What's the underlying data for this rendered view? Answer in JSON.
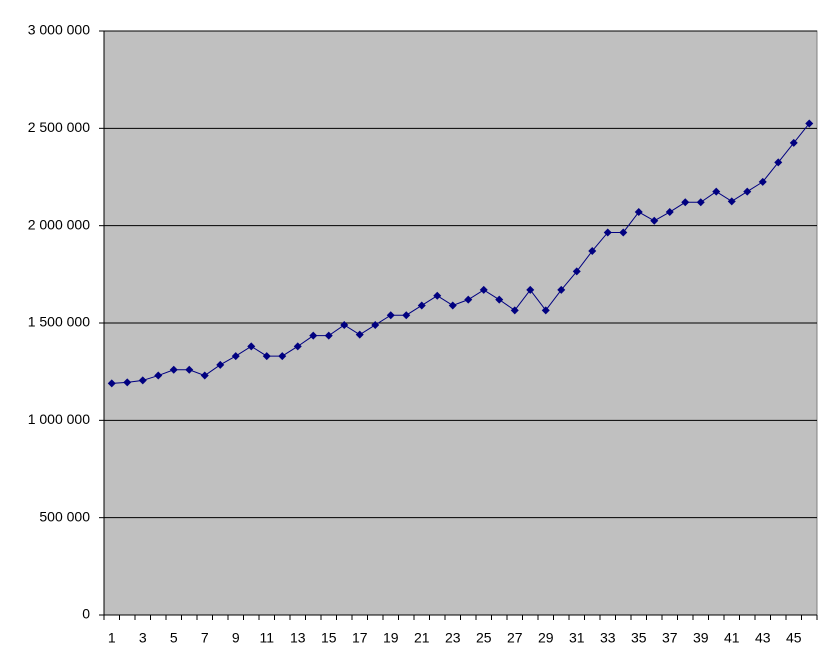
{
  "chart_data": {
    "type": "line",
    "categories": [
      1,
      null,
      3,
      null,
      5,
      null,
      7,
      null,
      9,
      null,
      11,
      null,
      13,
      null,
      15,
      null,
      17,
      null,
      19,
      null,
      21,
      null,
      23,
      null,
      25,
      null,
      27,
      null,
      29,
      null,
      31,
      null,
      33,
      null,
      35,
      null,
      37,
      null,
      39,
      null,
      41,
      null,
      43,
      null,
      45,
      null
    ],
    "values": [
      1190000,
      1195000,
      1205000,
      1230000,
      1260000,
      1260000,
      1230000,
      1285000,
      1330000,
      1380000,
      1330000,
      1330000,
      1380000,
      1435000,
      1435000,
      1490000,
      1440000,
      1490000,
      1540000,
      1540000,
      1590000,
      1640000,
      1590000,
      1620000,
      1670000,
      1620000,
      1565000,
      1670000,
      1565000,
      1670000,
      1765000,
      1870000,
      1965000,
      1965000,
      2070000,
      2025000,
      2070000,
      2120000,
      2120000,
      2175000,
      2125000,
      2175000,
      2225000,
      2325000,
      2425000,
      2525000
    ],
    "color": "#000080",
    "background": "#c0c0c0",
    "ylim": [
      0,
      3000000
    ],
    "yticks": [
      0,
      {
        "value": 500000,
        "label": "500 000"
      },
      {
        "value": 1000000,
        "label": "1 000 000"
      },
      {
        "value": 1500000,
        "label": "1 500 000"
      },
      {
        "value": 2000000,
        "label": "2 000 000"
      },
      {
        "value": 2500000,
        "label": "2 500 000"
      },
      {
        "value": 3000000,
        "label": "3 000 000"
      }
    ],
    "grid": true
  }
}
